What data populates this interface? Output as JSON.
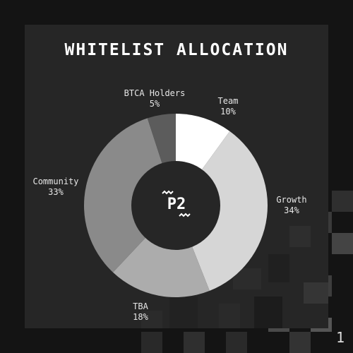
{
  "chart_data": {
    "type": "pie",
    "subtype": "donut",
    "title": "WHITELIST ALLOCATION",
    "categories": [
      "Team",
      "Growth",
      "TBA",
      "Community",
      "BTCA Holders"
    ],
    "values": [
      10,
      34,
      18,
      33,
      5
    ],
    "value_labels": [
      "10%",
      "34%",
      "18%",
      "33%",
      "5%"
    ],
    "colors": [
      "#ffffff",
      "#d6d6d6",
      "#acacac",
      "#8a8a8a",
      "#5c5c5c"
    ],
    "center_text": "P2"
  },
  "page_number": "1"
}
